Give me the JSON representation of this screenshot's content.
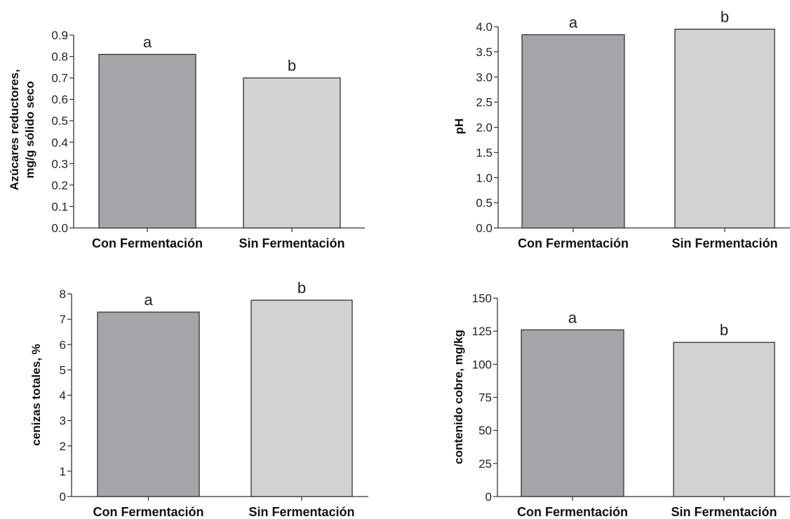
{
  "colors": {
    "con": "#a4a5a9",
    "sin": "#d1d2d4",
    "axis": "#333333",
    "outline": "#333333"
  },
  "chart_data": [
    {
      "type": "bar",
      "categories": [
        "Con Fermentación",
        "Sin Fermentación"
      ],
      "values": [
        0.81,
        0.7
      ],
      "letters": [
        "a",
        "b"
      ],
      "ylabel": [
        "Azúcares reductores,",
        "mg/g sólido seco"
      ],
      "ylim": [
        0,
        0.9
      ],
      "yticks": [
        "0.0",
        "0.1",
        "0.2",
        "0.3",
        "0.4",
        "0.5",
        "0.6",
        "0.7",
        "0.8",
        "0.9"
      ]
    },
    {
      "type": "bar",
      "categories": [
        "Con Fermentación",
        "Sin Fermentación"
      ],
      "values": [
        3.84,
        3.95
      ],
      "letters": [
        "a",
        "b"
      ],
      "ylabel": [
        "pH"
      ],
      "ylim": [
        0,
        4.0
      ],
      "yticks": [
        "0.0",
        "0.5",
        "1.0",
        "1.5",
        "2.0",
        "2.5",
        "3.0",
        "3.5",
        "4.0"
      ]
    },
    {
      "type": "bar",
      "categories": [
        "Con Fermentación",
        "Sin Fermentación"
      ],
      "values": [
        7.28,
        7.75
      ],
      "letters": [
        "a",
        "b"
      ],
      "ylabel": [
        "cenizas totales, %"
      ],
      "ylim": [
        0,
        8
      ],
      "yticks": [
        "0",
        "1",
        "2",
        "3",
        "4",
        "5",
        "6",
        "7",
        "8"
      ]
    },
    {
      "type": "bar",
      "categories": [
        "Con Fermentación",
        "Sin Fermentación"
      ],
      "values": [
        126,
        116.5
      ],
      "letters": [
        "a",
        "b"
      ],
      "ylabel": [
        "contenido cobre, mg/kg"
      ],
      "ylim": [
        0,
        150
      ],
      "yticks": [
        "0",
        "25",
        "50",
        "75",
        "100",
        "125",
        "150"
      ]
    }
  ]
}
